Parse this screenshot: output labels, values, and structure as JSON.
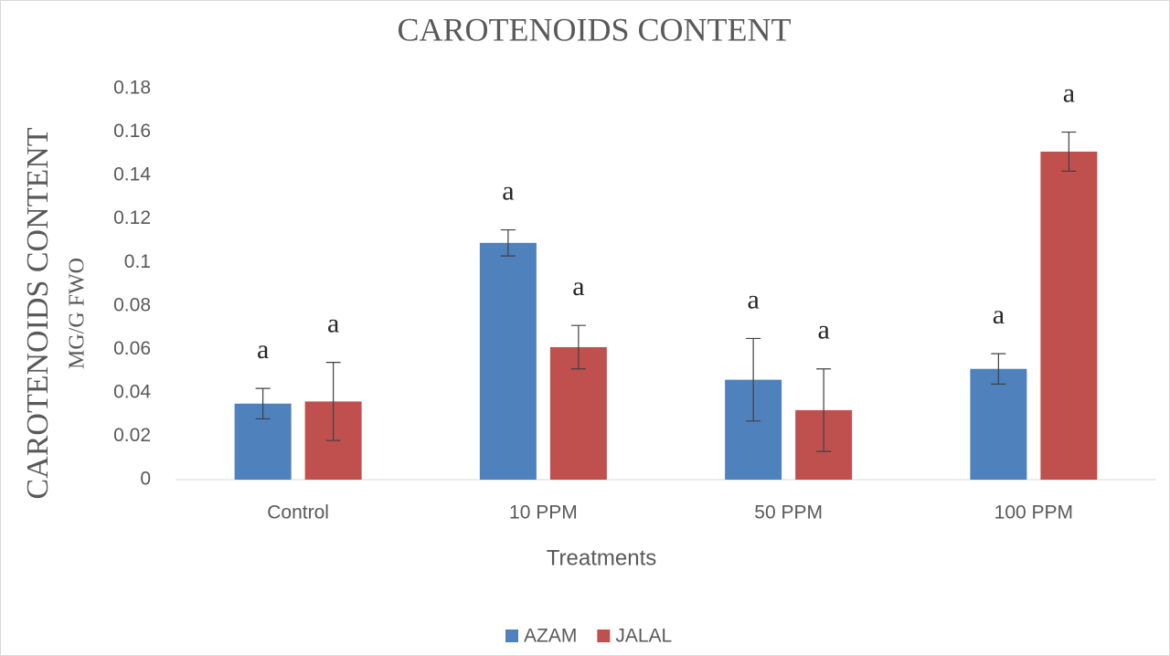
{
  "chart_data": {
    "type": "bar",
    "title": "CAROTENOIDS CONTENT",
    "ylabel": "CAROTENOIDS CONTENT",
    "ylabel_sub": "MG/G FWO",
    "xlabel": "Treatments",
    "categories": [
      "Control",
      "10 PPM",
      "50 PPM",
      "100 PPM"
    ],
    "series": [
      {
        "name": "AZAM",
        "color": "#4f81bd",
        "values": [
          0.035,
          0.109,
          0.046,
          0.051
        ],
        "errors": [
          0.007,
          0.006,
          0.019,
          0.007
        ],
        "annotations": [
          "a",
          "a",
          "a",
          "a"
        ]
      },
      {
        "name": "JALAL",
        "color": "#c0504d",
        "values": [
          0.036,
          0.061,
          0.032,
          0.151
        ],
        "errors": [
          0.018,
          0.01,
          0.019,
          0.009
        ],
        "annotations": [
          "a",
          "a",
          "a",
          "a"
        ]
      }
    ],
    "ylim": [
      0,
      0.18
    ],
    "yticks": [
      0,
      0.02,
      0.04,
      0.06,
      0.08,
      0.1,
      0.12,
      0.14,
      0.16,
      0.18
    ],
    "grid": false,
    "legend": "bottom"
  }
}
